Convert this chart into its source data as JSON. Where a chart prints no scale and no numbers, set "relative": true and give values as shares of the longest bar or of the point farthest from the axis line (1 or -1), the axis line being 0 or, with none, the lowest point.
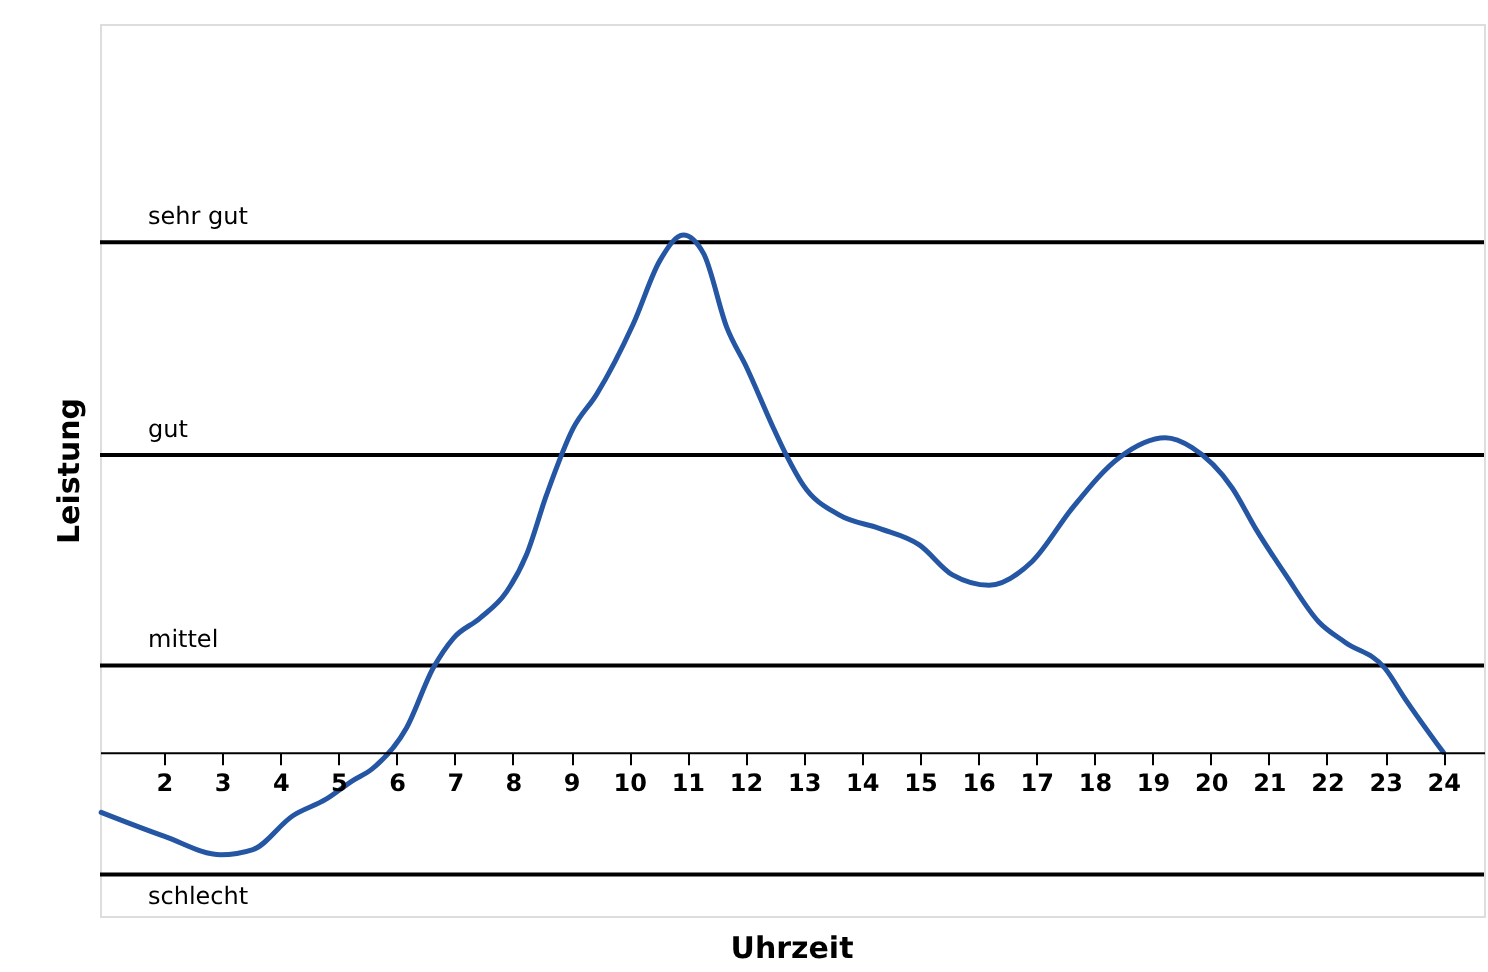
{
  "chart_data": {
    "type": "line",
    "xlabel": "Uhrzeit",
    "ylabel": "Leistung",
    "relative": true,
    "x": [
      0.92,
      2.0,
      2.98,
      3.53,
      4.21,
      4.78,
      5.24,
      5.58,
      6.17,
      6.63,
      6.98,
      7.43,
      7.89,
      8.23,
      8.58,
      9.04,
      9.44,
      10.07,
      10.53,
      10.93,
      11.28,
      11.68,
      12.02,
      12.48,
      12.7,
      12.99,
      13.61,
      14.3,
      14.99,
      15.56,
      16.19,
      16.93,
      17.62,
      18.42,
      19.22,
      19.68,
      20.37,
      20.77,
      21.29,
      21.86,
      22.31,
      23.0,
      23.34,
      24.0
    ],
    "series": [
      {
        "color": "#2456a4",
        "values": [
          -0.116,
          -0.162,
          -0.198,
          -0.188,
          -0.123,
          -0.091,
          -0.055,
          -0.032,
          0.047,
          0.163,
          0.221,
          0.259,
          0.31,
          0.381,
          0.498,
          0.627,
          0.692,
          0.828,
          0.951,
          1.0,
          0.964,
          0.821,
          0.744,
          0.627,
          0.575,
          0.517,
          0.459,
          0.433,
          0.401,
          0.343,
          0.323,
          0.369,
          0.472,
          0.569,
          0.608,
          0.589,
          0.511,
          0.433,
          0.343,
          0.252,
          0.213,
          0.162,
          0.104,
          0.0
        ]
      }
    ],
    "xlim": [
      0.9,
      24.7
    ],
    "xticks": [
      2,
      3,
      4,
      5,
      6,
      7,
      8,
      9,
      10,
      11,
      12,
      13,
      14,
      15,
      16,
      17,
      18,
      19,
      20,
      21,
      22,
      23,
      24
    ],
    "ref_lines": [
      {
        "axis": "y",
        "value": 0.986,
        "label": "sehr gut",
        "color": "#000000"
      },
      {
        "axis": "y",
        "value": 0.575,
        "label": "gut",
        "color": "#000000"
      },
      {
        "axis": "y",
        "value": 0.168,
        "label": "mittel",
        "color": "#000000"
      },
      {
        "axis": "y",
        "value": -0.236,
        "label": "schlecht",
        "color": "#000000"
      }
    ]
  }
}
